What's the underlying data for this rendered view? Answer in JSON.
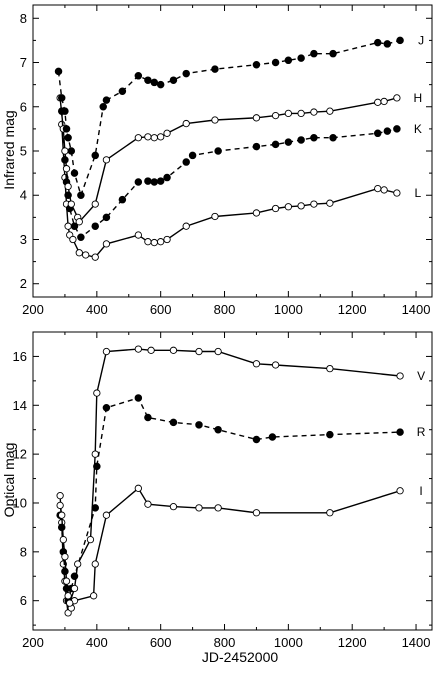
{
  "chart_data": [
    {
      "type": "line",
      "id": "infrared",
      "xlabel": "",
      "ylabel": "Infrared mag",
      "xlim": [
        200,
        1450
      ],
      "ylim": [
        8.3,
        1.7
      ],
      "y_inverted": true,
      "xticks": [
        200,
        400,
        600,
        800,
        1000,
        1200,
        1400
      ],
      "yticks": [
        2,
        3,
        4,
        5,
        6,
        7,
        8
      ],
      "grid": false,
      "series": [
        {
          "name": "L",
          "line": "solid",
          "marker": "open-circle",
          "points": [
            [
              290,
              5.6
            ],
            [
              300,
              4.4
            ],
            [
              305,
              3.8
            ],
            [
              310,
              3.3
            ],
            [
              315,
              3.1
            ],
            [
              325,
              3.0
            ],
            [
              345,
              2.7
            ],
            [
              365,
              2.65
            ],
            [
              395,
              2.6
            ],
            [
              430,
              2.9
            ],
            [
              530,
              3.1
            ],
            [
              560,
              2.95
            ],
            [
              580,
              2.93
            ],
            [
              600,
              2.95
            ],
            [
              620,
              3.0
            ],
            [
              680,
              3.3
            ],
            [
              770,
              3.52
            ],
            [
              900,
              3.6
            ],
            [
              960,
              3.7
            ],
            [
              1000,
              3.74
            ],
            [
              1040,
              3.76
            ],
            [
              1080,
              3.8
            ],
            [
              1130,
              3.82
            ],
            [
              1280,
              4.15
            ],
            [
              1300,
              4.12
            ],
            [
              1340,
              4.05
            ]
          ]
        },
        {
          "name": "K",
          "line": "dashed",
          "marker": "filled-circle",
          "points": [
            [
              290,
              5.9
            ],
            [
              300,
              4.8
            ],
            [
              305,
              4.3
            ],
            [
              310,
              4.0
            ],
            [
              315,
              3.7
            ],
            [
              330,
              3.3
            ],
            [
              350,
              3.05
            ],
            [
              395,
              3.3
            ],
            [
              430,
              3.5
            ],
            [
              480,
              3.9
            ],
            [
              530,
              4.3
            ],
            [
              560,
              4.32
            ],
            [
              580,
              4.3
            ],
            [
              600,
              4.32
            ],
            [
              620,
              4.4
            ],
            [
              680,
              4.75
            ],
            [
              700,
              4.9
            ],
            [
              780,
              5.0
            ],
            [
              900,
              5.1
            ],
            [
              960,
              5.15
            ],
            [
              1000,
              5.2
            ],
            [
              1040,
              5.25
            ],
            [
              1080,
              5.3
            ],
            [
              1140,
              5.3
            ],
            [
              1280,
              5.4
            ],
            [
              1310,
              5.45
            ],
            [
              1340,
              5.5
            ]
          ]
        },
        {
          "name": "H",
          "line": "solid",
          "marker": "open-circle",
          "points": [
            [
              285,
              6.2
            ],
            [
              295,
              5.5
            ],
            [
              300,
              5.0
            ],
            [
              305,
              4.6
            ],
            [
              310,
              4.2
            ],
            [
              320,
              3.8
            ],
            [
              340,
              3.5
            ],
            [
              345,
              3.4
            ],
            [
              395,
              3.8
            ],
            [
              430,
              4.8
            ],
            [
              530,
              5.3
            ],
            [
              560,
              5.32
            ],
            [
              580,
              5.3
            ],
            [
              600,
              5.32
            ],
            [
              620,
              5.4
            ],
            [
              680,
              5.62
            ],
            [
              770,
              5.7
            ],
            [
              900,
              5.75
            ],
            [
              960,
              5.8
            ],
            [
              1000,
              5.85
            ],
            [
              1040,
              5.85
            ],
            [
              1080,
              5.88
            ],
            [
              1130,
              5.9
            ],
            [
              1280,
              6.1
            ],
            [
              1300,
              6.12
            ],
            [
              1340,
              6.2
            ]
          ]
        },
        {
          "name": "J",
          "line": "dashed",
          "marker": "filled-circle",
          "points": [
            [
              280,
              6.8
            ],
            [
              290,
              6.2
            ],
            [
              300,
              5.9
            ],
            [
              305,
              5.5
            ],
            [
              310,
              5.3
            ],
            [
              320,
              5.0
            ],
            [
              330,
              4.5
            ],
            [
              350,
              4.0
            ],
            [
              395,
              4.9
            ],
            [
              420,
              6.0
            ],
            [
              430,
              6.15
            ],
            [
              480,
              6.35
            ],
            [
              530,
              6.7
            ],
            [
              560,
              6.6
            ],
            [
              580,
              6.55
            ],
            [
              600,
              6.5
            ],
            [
              640,
              6.6
            ],
            [
              680,
              6.75
            ],
            [
              770,
              6.85
            ],
            [
              900,
              6.95
            ],
            [
              960,
              7.0
            ],
            [
              1000,
              7.05
            ],
            [
              1040,
              7.1
            ],
            [
              1080,
              7.2
            ],
            [
              1140,
              7.2
            ],
            [
              1280,
              7.45
            ],
            [
              1310,
              7.42
            ],
            [
              1350,
              7.5
            ]
          ]
        }
      ]
    },
    {
      "type": "line",
      "id": "optical",
      "xlabel": "JD-2452000",
      "ylabel": "Optical mag",
      "xlim": [
        200,
        1450
      ],
      "ylim": [
        17.0,
        4.8
      ],
      "y_inverted": true,
      "xticks": [
        200,
        400,
        600,
        800,
        1000,
        1200,
        1400
      ],
      "yticks": [
        6,
        8,
        10,
        12,
        14,
        16
      ],
      "grid": false,
      "series": [
        {
          "name": "I",
          "line": "solid",
          "marker": "open-circle",
          "points": [
            [
              285,
              10.3
            ],
            [
              290,
              9.2
            ],
            [
              295,
              7.5
            ],
            [
              300,
              6.8
            ],
            [
              305,
              6.0
            ],
            [
              310,
              5.5
            ],
            [
              320,
              5.7
            ],
            [
              330,
              6.0
            ],
            [
              390,
              6.2
            ],
            [
              395,
              7.5
            ],
            [
              430,
              9.5
            ],
            [
              530,
              10.6
            ],
            [
              560,
              9.95
            ],
            [
              640,
              9.85
            ],
            [
              720,
              9.8
            ],
            [
              780,
              9.8
            ],
            [
              900,
              9.6
            ],
            [
              1130,
              9.6
            ],
            [
              1350,
              10.5
            ]
          ]
        },
        {
          "name": "R",
          "line": "dashed",
          "marker": "filled-circle",
          "points": [
            [
              285,
              9.5
            ],
            [
              290,
              9.0
            ],
            [
              295,
              8.0
            ],
            [
              300,
              7.2
            ],
            [
              305,
              6.5
            ],
            [
              310,
              6.0
            ],
            [
              320,
              6.5
            ],
            [
              330,
              7.0
            ],
            [
              395,
              9.8
            ],
            [
              400,
              11.5
            ],
            [
              430,
              13.9
            ],
            [
              530,
              14.3
            ],
            [
              560,
              13.5
            ],
            [
              640,
              13.3
            ],
            [
              720,
              13.2
            ],
            [
              780,
              13.0
            ],
            [
              900,
              12.6
            ],
            [
              950,
              12.7
            ],
            [
              1130,
              12.8
            ],
            [
              1350,
              12.9
            ]
          ]
        },
        {
          "name": "V",
          "line": "solid",
          "marker": "open-circle",
          "points": [
            [
              285,
              9.9
            ],
            [
              290,
              9.5
            ],
            [
              295,
              8.5
            ],
            [
              300,
              7.8
            ],
            [
              305,
              6.8
            ],
            [
              310,
              6.2
            ],
            [
              315,
              5.9
            ],
            [
              330,
              6.5
            ],
            [
              340,
              7.5
            ],
            [
              380,
              8.5
            ],
            [
              395,
              12.0
            ],
            [
              400,
              14.5
            ],
            [
              430,
              16.2
            ],
            [
              530,
              16.3
            ],
            [
              570,
              16.25
            ],
            [
              640,
              16.25
            ],
            [
              720,
              16.2
            ],
            [
              780,
              16.2
            ],
            [
              900,
              15.7
            ],
            [
              960,
              15.65
            ],
            [
              1130,
              15.5
            ],
            [
              1350,
              15.2
            ]
          ]
        }
      ]
    }
  ]
}
